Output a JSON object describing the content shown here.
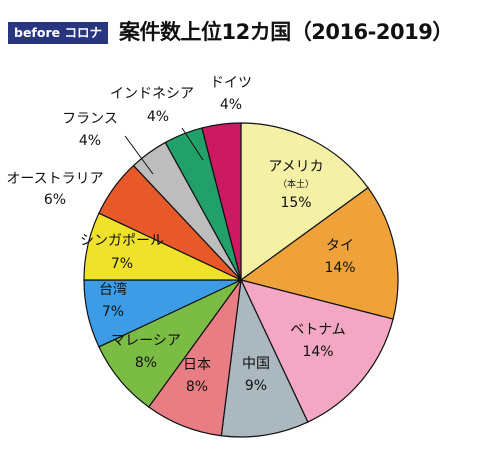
{
  "header": {
    "badge": "before コロナ",
    "title": "案件数上位12カ国（2016-2019）"
  },
  "chart_data": {
    "type": "pie",
    "start": "top",
    "direction": "clockwise",
    "slices": [
      {
        "label": "アメリカ",
        "sublabel": "（本土）",
        "pct": 15,
        "pct_label": "15%",
        "color": "#f4f0a6"
      },
      {
        "label": "タイ",
        "pct": 14,
        "pct_label": "14%",
        "color": "#efa23a"
      },
      {
        "label": "ベトナム",
        "pct": 14,
        "pct_label": "14%",
        "color": "#f3a7c2"
      },
      {
        "label": "中国",
        "pct": 9,
        "pct_label": "9%",
        "color": "#abb8c0"
      },
      {
        "label": "日本",
        "pct": 8,
        "pct_label": "8%",
        "color": "#e87e84"
      },
      {
        "label": "マレーシア",
        "pct": 8,
        "pct_label": "8%",
        "color": "#7bbd44"
      },
      {
        "label": "台湾",
        "pct": 7,
        "pct_label": "7%",
        "color": "#3c9de6"
      },
      {
        "label": "シンガポール",
        "pct": 7,
        "pct_label": "7%",
        "color": "#f0e22a"
      },
      {
        "label": "オーストラリア",
        "pct": 6,
        "pct_label": "6%",
        "color": "#e8592a"
      },
      {
        "label": "フランス",
        "pct": 4,
        "pct_label": "4%",
        "color": "#bdbdbd"
      },
      {
        "label": "インドネシア",
        "pct": 4,
        "pct_label": "4%",
        "color": "#22a06a"
      },
      {
        "label": "ドイツ",
        "pct": 4,
        "pct_label": "4%",
        "color": "#cd1862"
      }
    ]
  }
}
